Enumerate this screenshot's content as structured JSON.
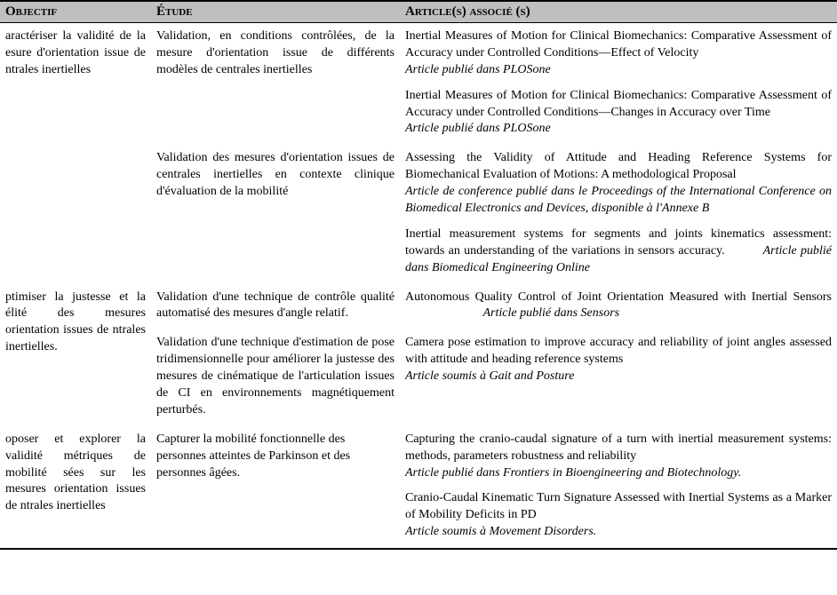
{
  "colors": {
    "header_bg": "#bfbfbf",
    "border": "#000000",
    "text": "#000000",
    "background": "#ffffff"
  },
  "typography": {
    "font_family": "Times New Roman",
    "header_fontsize_pt": 11,
    "body_fontsize_pt": 11
  },
  "headers": {
    "objectif": "Objectif",
    "etude": "Étude",
    "articles": "Article(s) associé (s)"
  },
  "section1": {
    "objectif": "aractériser la validité de la esure d'orientation issue de ntrales inertielles",
    "etude1": "Validation, en conditions contrôlées, de la mesure d'orientation issue de différents modèles de centrales inertielles",
    "etude2": "Validation des mesures d'orientation issues de centrales inertielles en contexte clinique d'évaluation de la mobilité",
    "art1_title": "Inertial Measures of Motion for Clinical Biomechanics: Comparative Assessment of Accuracy under Controlled Conditions—Effect of Velocity",
    "art1_pub": "Article publié dans PLOSone",
    "art2_title": "Inertial Measures of Motion for Clinical Biomechanics: Comparative Assessment of Accuracy under Controlled Conditions—Changes in Accuracy over Time",
    "art2_pub": "Article publié dans PLOSone",
    "art3_title": "Assessing the Validity of Attitude and Heading Reference Systems for Biomechanical Evaluation of Motions: A methodological Proposal",
    "art3_pub": "Article de conference publié dans le Proceedings of the International Conference on Biomedical Electronics and Devices, disponible à l'Annexe B",
    "art4_title": "Inertial measurement systems for segments and joints kinematics assessment: towards an understanding of the variations in sensors accuracy.",
    "art4_pub": "Article publié dans Biomedical Engineering Online"
  },
  "section2": {
    "objectif": "ptimiser la justesse et la élité des mesures orientation issues de ntrales inertielles.",
    "etude1": "Validation d'une technique de contrôle qualité automatisé des mesures d'angle relatif.",
    "etude2": "Validation d'une technique d'estimation de pose tridimensionnelle pour améliorer la justesse des mesures de cinématique de l'articulation issues de CI en environnements magnétiquement perturbés.",
    "art1_title": "Autonomous Quality Control of Joint Orientation Measured with Inertial Sensors",
    "art1_pub": "Article publié dans Sensors",
    "art2_title": "Camera pose estimation to improve accuracy and reliability of joint angles assessed with attitude and heading reference systems",
    "art2_pub": "Article soumis à Gait and Posture"
  },
  "section3": {
    "objectif": "oposer et explorer la validité métriques de mobilité sées sur les mesures orientation issues de ntrales inertielles",
    "etude1": "Capturer la mobilité fonctionnelle des personnes atteintes de Parkinson et des personnes âgées.",
    "art1_title": "Capturing the cranio-caudal signature of a turn with inertial measurement systems: methods, parameters robustness and reliability",
    "art1_pub": "Article publié dans Frontiers in Bioengineering and Biotechnology.",
    "art2_title": "Cranio-Caudal Kinematic Turn Signature Assessed with Inertial Systems as a Marker of Mobility Deficits in PD",
    "art2_pub": "Article soumis à Movement Disorders."
  }
}
